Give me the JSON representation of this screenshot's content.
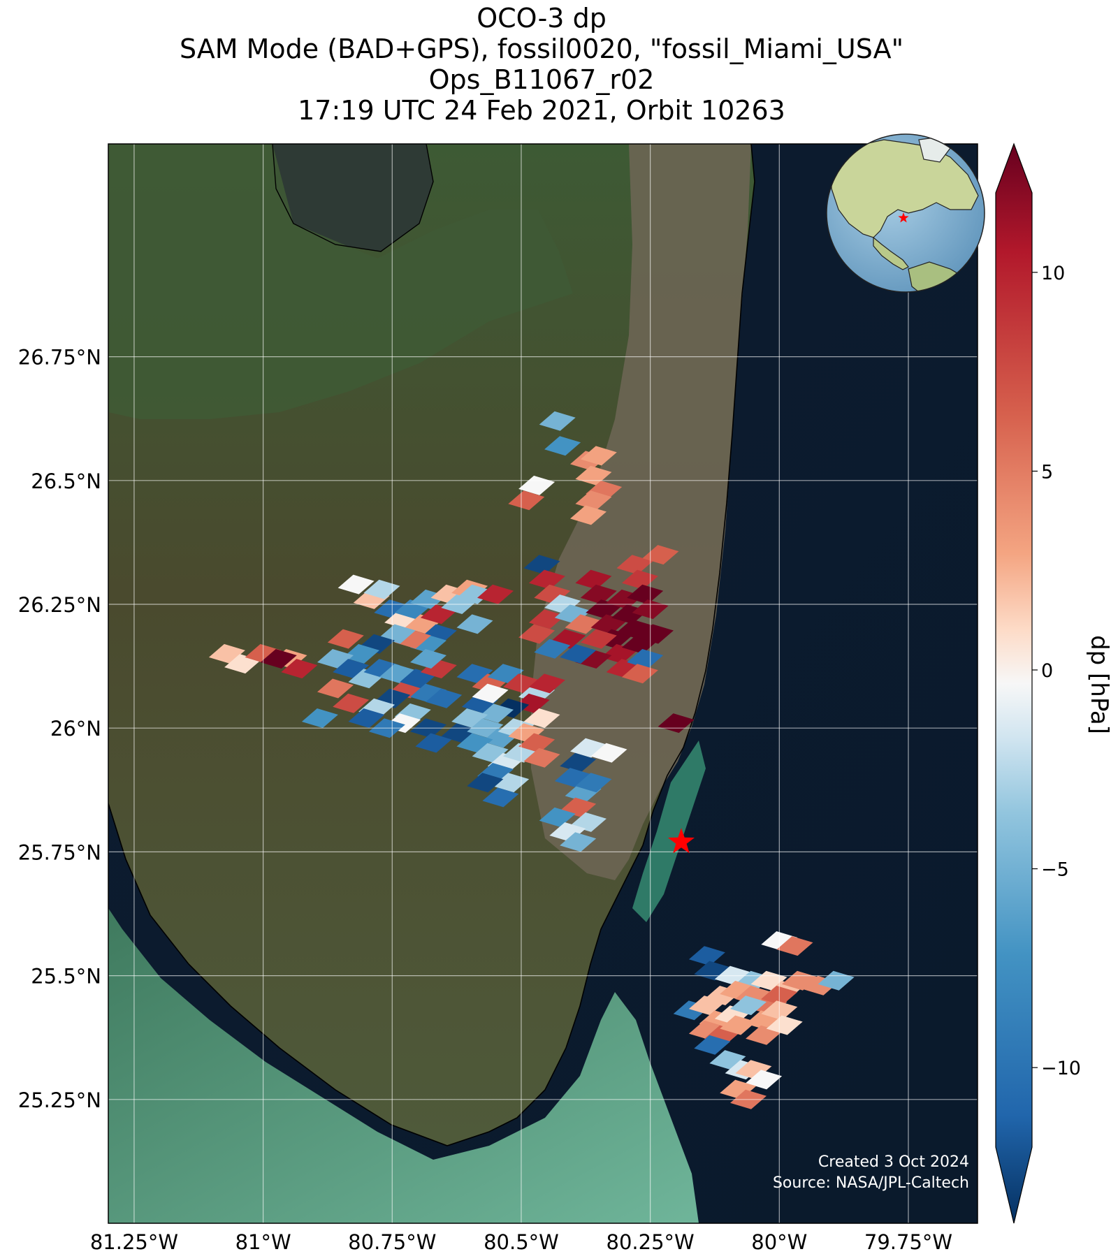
{
  "title": {
    "line1": "OCO-3 dp",
    "line2": "SAM Mode (BAD+GPS), fossil0020, \"fossil_Miami_USA\"",
    "line3": "Ops_B11067_r02",
    "line4": "17:19 UTC 24 Feb 2021, Orbit 10263"
  },
  "map": {
    "lon_range": [
      -81.25,
      -79.75
    ],
    "lat_range": [
      25.0,
      26.9
    ],
    "lat_ticks": [
      {
        "value": 26.75,
        "label": "26.75°N"
      },
      {
        "value": 26.5,
        "label": "26.5°N"
      },
      {
        "value": 26.25,
        "label": "26.25°N"
      },
      {
        "value": 26.0,
        "label": "26°N"
      },
      {
        "value": 25.75,
        "label": "25.75°N"
      },
      {
        "value": 25.5,
        "label": "25.5°N"
      },
      {
        "value": 25.25,
        "label": "25.25°N"
      }
    ],
    "lon_ticks": [
      {
        "value": -81.25,
        "label": "81.25°W"
      },
      {
        "value": -81.0,
        "label": "81°W"
      },
      {
        "value": -80.75,
        "label": "80.75°W"
      },
      {
        "value": -80.5,
        "label": "80.5°W"
      },
      {
        "value": -80.25,
        "label": "80.25°W"
      },
      {
        "value": -80.0,
        "label": "80°W"
      },
      {
        "value": -79.75,
        "label": "79.75°W"
      }
    ],
    "target": {
      "name": "fossil_Miami_USA",
      "lon": -80.19,
      "lat": 25.77,
      "marker_color": "#ff0000"
    },
    "credit_line1": "Created 3 Oct 2024",
    "credit_line2": "Source: NASA/JPL-Caltech"
  },
  "colorbar": {
    "label": "dp [hPa]",
    "vmin": -12,
    "vmax": 12,
    "colormap": "RdBu_r",
    "ticks": [
      {
        "value": 10,
        "label": "10"
      },
      {
        "value": 5,
        "label": "5"
      },
      {
        "value": 0,
        "label": "0"
      },
      {
        "value": -5,
        "label": "−5"
      },
      {
        "value": -10,
        "label": "−10"
      }
    ],
    "extend": "both"
  },
  "chart_data": {
    "type": "heatmap",
    "value_name": "dp",
    "units": "hPa",
    "note_units": "lon, lat in degrees; dp in hPa",
    "soundings": [
      [
        -80.43,
        26.62,
        -4
      ],
      [
        -80.42,
        26.57,
        -6
      ],
      [
        -80.37,
        26.54,
        4
      ],
      [
        -80.36,
        26.51,
        3
      ],
      [
        -80.35,
        26.55,
        3
      ],
      [
        -80.34,
        26.48,
        5
      ],
      [
        -80.36,
        26.46,
        4
      ],
      [
        -80.47,
        26.49,
        0
      ],
      [
        -80.49,
        26.46,
        6
      ],
      [
        -80.37,
        26.43,
        3
      ],
      [
        -80.46,
        26.33,
        -11
      ],
      [
        -80.45,
        26.3,
        9
      ],
      [
        -80.44,
        26.27,
        7
      ],
      [
        -80.45,
        26.22,
        8
      ],
      [
        -80.47,
        26.19,
        7
      ],
      [
        -80.42,
        26.25,
        -2
      ],
      [
        -80.4,
        26.23,
        -4
      ],
      [
        -80.38,
        26.21,
        5
      ],
      [
        -80.36,
        26.3,
        10
      ],
      [
        -80.35,
        26.27,
        11
      ],
      [
        -80.34,
        26.24,
        12
      ],
      [
        -80.33,
        26.21,
        11
      ],
      [
        -80.32,
        26.18,
        12
      ],
      [
        -80.31,
        26.15,
        10
      ],
      [
        -80.3,
        26.12,
        9
      ],
      [
        -80.3,
        26.26,
        11
      ],
      [
        -80.29,
        26.23,
        12
      ],
      [
        -80.28,
        26.2,
        12
      ],
      [
        -80.27,
        26.17,
        12
      ],
      [
        -80.26,
        26.14,
        -9
      ],
      [
        -80.28,
        26.33,
        7
      ],
      [
        -80.27,
        26.3,
        8
      ],
      [
        -80.26,
        26.27,
        12
      ],
      [
        -80.25,
        26.24,
        11
      ],
      [
        -80.27,
        26.11,
        6
      ],
      [
        -80.36,
        26.14,
        11
      ],
      [
        -80.39,
        26.15,
        -10
      ],
      [
        -80.41,
        26.18,
        10
      ],
      [
        -80.44,
        26.16,
        -8
      ],
      [
        -80.24,
        26.19,
        12
      ],
      [
        -80.23,
        26.35,
        6
      ],
      [
        -80.35,
        26.18,
        8
      ],
      [
        -80.2,
        26.01,
        12
      ],
      [
        -80.82,
        26.29,
        0
      ],
      [
        -80.79,
        26.26,
        2
      ],
      [
        -80.77,
        26.28,
        -2
      ],
      [
        -80.75,
        26.24,
        -9
      ],
      [
        -80.73,
        26.22,
        1
      ],
      [
        -80.71,
        26.24,
        -7
      ],
      [
        -80.69,
        26.21,
        3
      ],
      [
        -80.68,
        26.26,
        -5
      ],
      [
        -80.66,
        26.23,
        9
      ],
      [
        -80.64,
        26.27,
        2
      ],
      [
        -80.62,
        26.25,
        -3
      ],
      [
        -80.6,
        26.28,
        3
      ],
      [
        -80.66,
        26.19,
        -10
      ],
      [
        -80.68,
        26.17,
        -6
      ],
      [
        -80.71,
        26.18,
        5
      ],
      [
        -80.74,
        26.19,
        -4
      ],
      [
        -80.78,
        26.17,
        -11
      ],
      [
        -80.81,
        26.15,
        -6
      ],
      [
        -80.84,
        26.18,
        6
      ],
      [
        -80.86,
        26.14,
        -4
      ],
      [
        -80.83,
        26.12,
        -10
      ],
      [
        -80.8,
        26.1,
        -3
      ],
      [
        -80.77,
        26.12,
        -9
      ],
      [
        -80.74,
        26.11,
        -5
      ],
      [
        -80.72,
        26.08,
        7
      ],
      [
        -80.7,
        26.1,
        -10
      ],
      [
        -80.68,
        26.07,
        -8
      ],
      [
        -80.75,
        26.06,
        -11
      ],
      [
        -80.78,
        26.04,
        -2
      ],
      [
        -80.8,
        26.02,
        -10
      ],
      [
        -80.83,
        26.05,
        7
      ],
      [
        -80.86,
        26.08,
        5
      ],
      [
        -80.89,
        26.02,
        -6
      ],
      [
        -80.71,
        26.03,
        -3
      ],
      [
        -80.73,
        26.01,
        0
      ],
      [
        -80.76,
        26.0,
        -8
      ],
      [
        -80.68,
        26.0,
        -11
      ],
      [
        -80.65,
        26.06,
        -9
      ],
      [
        -80.62,
        25.99,
        -11
      ],
      [
        -80.67,
        25.97,
        -10
      ],
      [
        -80.95,
        26.14,
        3
      ],
      [
        -81.07,
        26.15,
        2
      ],
      [
        -81.04,
        26.13,
        1
      ],
      [
        -81.0,
        26.15,
        6
      ],
      [
        -80.97,
        26.14,
        12
      ],
      [
        -80.93,
        26.12,
        9
      ],
      [
        -80.66,
        26.12,
        8
      ],
      [
        -80.68,
        26.14,
        -5
      ],
      [
        -80.59,
        26.11,
        -9
      ],
      [
        -80.56,
        26.09,
        6
      ],
      [
        -80.53,
        26.11,
        -7
      ],
      [
        -80.5,
        26.09,
        8
      ],
      [
        -80.47,
        26.07,
        -2
      ],
      [
        -80.45,
        26.09,
        9
      ],
      [
        -80.48,
        26.05,
        10
      ],
      [
        -80.52,
        26.04,
        -12
      ],
      [
        -80.55,
        26.03,
        -4
      ],
      [
        -80.58,
        26.05,
        -10
      ],
      [
        -80.6,
        26.02,
        -3
      ],
      [
        -80.57,
        26.0,
        -4
      ],
      [
        -80.54,
        25.98,
        -5
      ],
      [
        -80.51,
        26.0,
        -2
      ],
      [
        -80.49,
        25.99,
        3
      ],
      [
        -80.46,
        26.02,
        1
      ],
      [
        -80.59,
        25.97,
        -6
      ],
      [
        -80.56,
        25.95,
        -3
      ],
      [
        -80.53,
        25.93,
        -1
      ],
      [
        -80.5,
        25.95,
        -2
      ],
      [
        -80.55,
        25.91,
        -8
      ],
      [
        -80.52,
        25.89,
        -2
      ],
      [
        -80.57,
        25.89,
        -11
      ],
      [
        -80.54,
        25.86,
        -9
      ],
      [
        -80.56,
        26.07,
        0
      ],
      [
        -80.59,
        26.27,
        -3
      ],
      [
        -80.55,
        26.27,
        9
      ],
      [
        -80.59,
        26.21,
        -4
      ],
      [
        -80.47,
        25.97,
        6
      ],
      [
        -80.46,
        25.94,
        5
      ],
      [
        -80.37,
        25.96,
        -1
      ],
      [
        -80.33,
        25.95,
        0
      ],
      [
        -80.39,
        25.93,
        -11
      ],
      [
        -80.4,
        25.9,
        -9
      ],
      [
        -80.38,
        25.87,
        -5
      ],
      [
        -80.39,
        25.84,
        6
      ],
      [
        -80.37,
        25.81,
        -2
      ],
      [
        -80.43,
        25.82,
        -6
      ],
      [
        -80.41,
        25.79,
        -1
      ],
      [
        -80.39,
        25.77,
        -4
      ],
      [
        -80.36,
        25.89,
        -8
      ],
      [
        -80.14,
        25.54,
        -10
      ],
      [
        -80.13,
        25.51,
        -11
      ],
      [
        -80.09,
        25.5,
        -1
      ],
      [
        -80.05,
        25.49,
        -3
      ],
      [
        -80.0,
        25.57,
        0
      ],
      [
        -79.97,
        25.56,
        5
      ],
      [
        -80.02,
        25.49,
        1
      ],
      [
        -79.99,
        25.47,
        2
      ],
      [
        -79.96,
        25.49,
        4
      ],
      [
        -79.92,
        25.48,
        4
      ],
      [
        -79.89,
        25.49,
        -4
      ],
      [
        -80.17,
        25.43,
        -8
      ],
      [
        -80.14,
        25.44,
        2
      ],
      [
        -80.11,
        25.46,
        2
      ],
      [
        -80.08,
        25.47,
        3
      ],
      [
        -80.05,
        25.46,
        4
      ],
      [
        -80.02,
        25.44,
        5
      ],
      [
        -80.0,
        25.46,
        6
      ],
      [
        -80.12,
        25.41,
        3
      ],
      [
        -80.09,
        25.42,
        1
      ],
      [
        -80.06,
        25.44,
        -3
      ],
      [
        -80.03,
        25.41,
        3
      ],
      [
        -80.0,
        25.43,
        2
      ],
      [
        -80.14,
        25.39,
        4
      ],
      [
        -80.11,
        25.38,
        6
      ],
      [
        -80.08,
        25.4,
        3
      ],
      [
        -80.03,
        25.38,
        4
      ],
      [
        -79.99,
        25.4,
        1
      ],
      [
        -80.13,
        25.36,
        -9
      ],
      [
        -80.1,
        25.33,
        -3
      ],
      [
        -80.07,
        25.31,
        -1
      ],
      [
        -80.05,
        25.31,
        2
      ],
      [
        -80.03,
        25.29,
        0
      ],
      [
        -80.08,
        25.27,
        3
      ],
      [
        -80.06,
        25.25,
        5
      ]
    ]
  }
}
